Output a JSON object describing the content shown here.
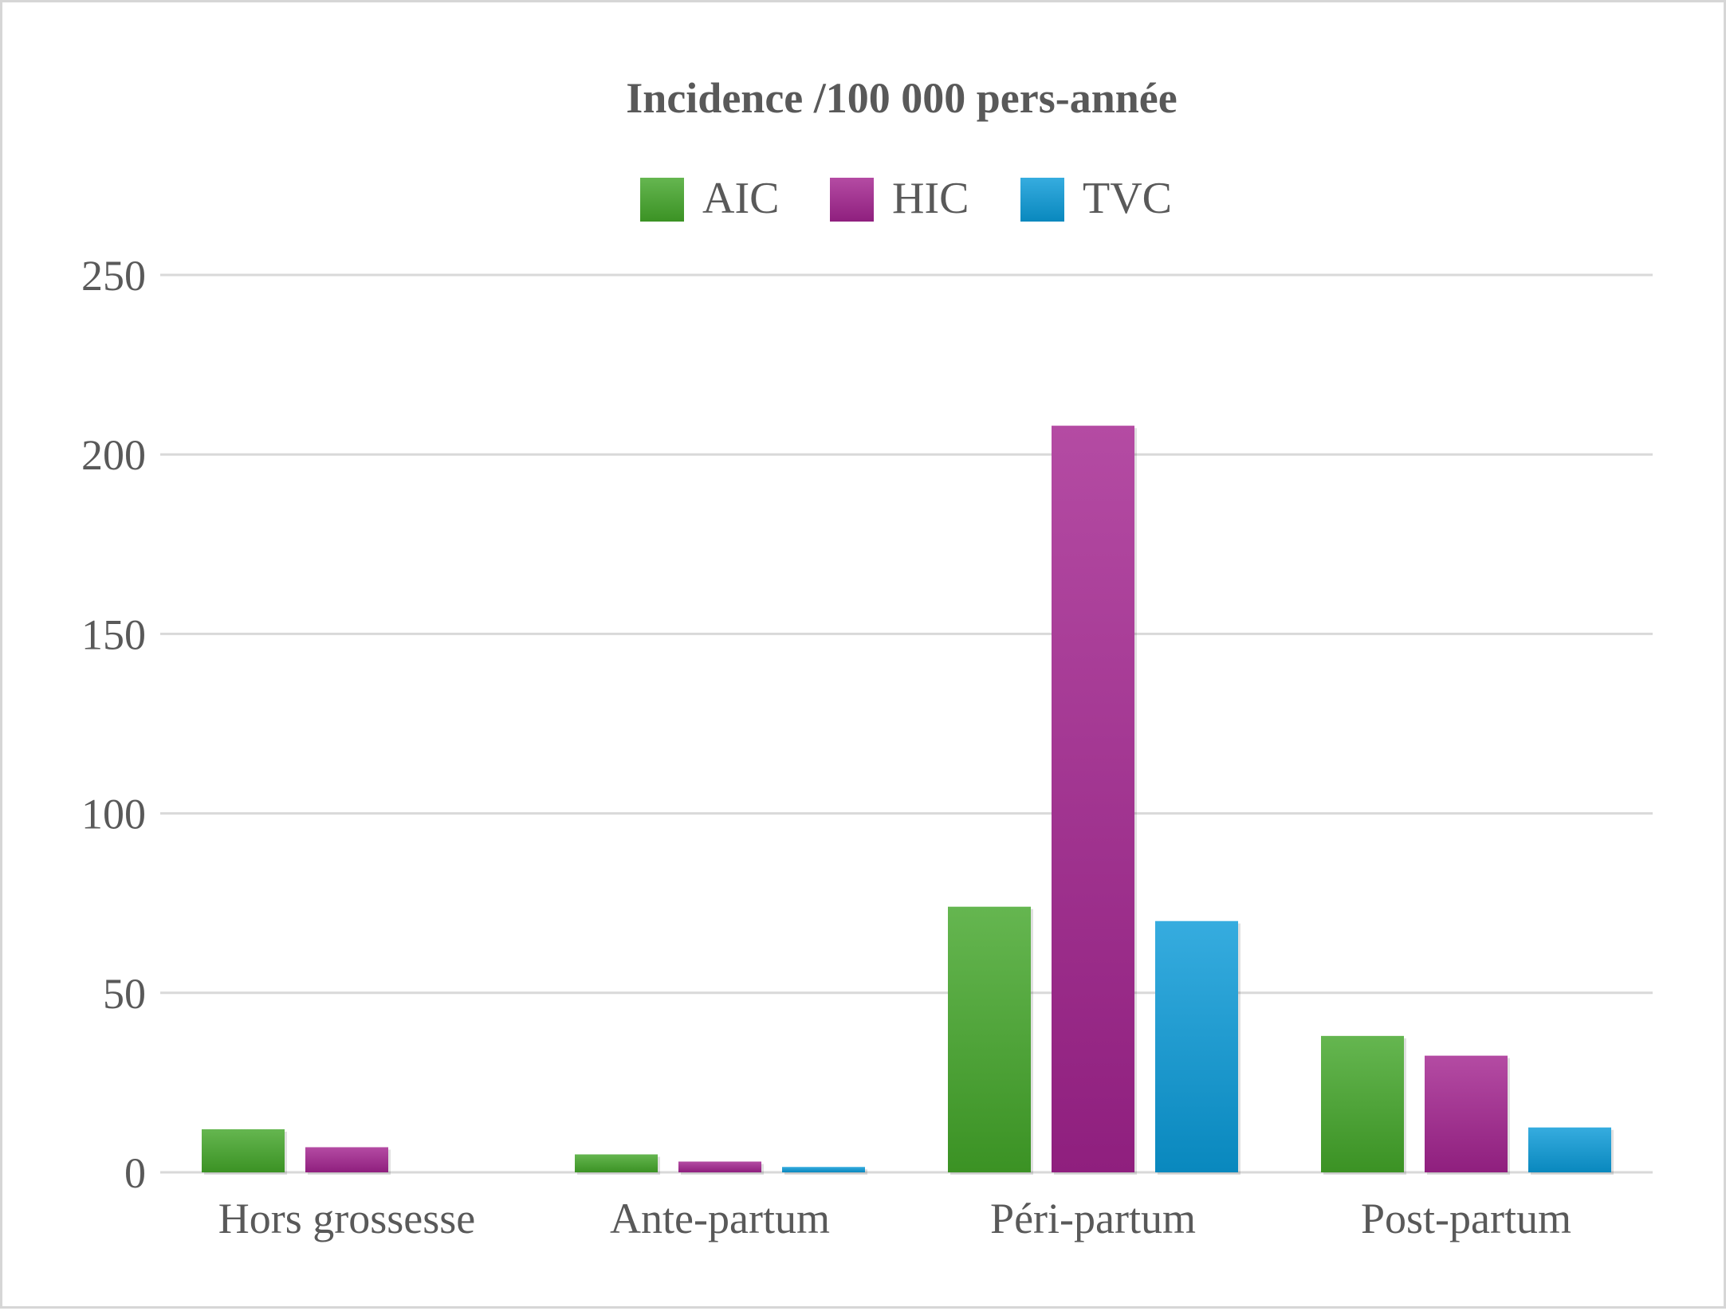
{
  "chart_data": {
    "type": "bar",
    "title": "Incidence /100 000 pers-année",
    "categories": [
      "Hors grossesse",
      "Ante-partum",
      "Péri-partum",
      "Post-partum"
    ],
    "series": [
      {
        "name": "AIC",
        "values": [
          12,
          5,
          74,
          38
        ],
        "color": "#43a629"
      },
      {
        "name": "HIC",
        "values": [
          7,
          3,
          208,
          32.5
        ],
        "color": "#a3238f"
      },
      {
        "name": "TVC",
        "values": [
          0,
          1.5,
          70,
          12.5
        ],
        "color": "#0a9ad8"
      }
    ],
    "ylim": [
      0,
      250
    ],
    "yticks": [
      "0",
      "50",
      "100",
      "150",
      "200",
      "250"
    ],
    "xlabel": "",
    "ylabel": "",
    "grid": true,
    "legend_position": "top"
  }
}
